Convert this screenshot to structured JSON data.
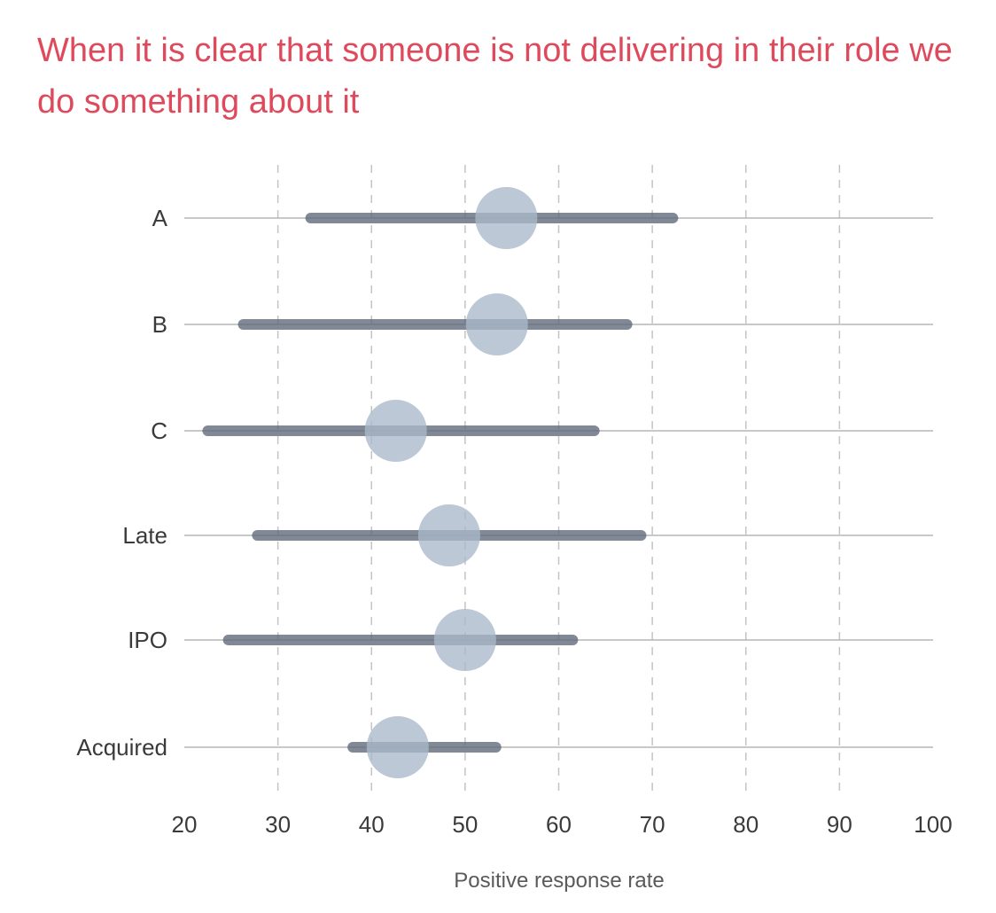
{
  "chart_data": {
    "type": "range-dot",
    "title": "When it is clear that someone is not delivering in their role we do something about it",
    "xlabel": "Positive response rate",
    "ylabel": "",
    "xlim": [
      20,
      100
    ],
    "xticks": [
      20,
      30,
      40,
      50,
      60,
      70,
      80,
      90,
      100
    ],
    "grid": "vertical dashed",
    "categories": [
      "A",
      "B",
      "C",
      "Late",
      "IPO",
      "Acquired"
    ],
    "series": [
      {
        "name": "range_low",
        "values": [
          33.5,
          26.3,
          22.5,
          27.8,
          24.7,
          38.0
        ]
      },
      {
        "name": "range_high",
        "values": [
          72.2,
          67.3,
          63.8,
          68.8,
          61.5,
          53.3
        ]
      },
      {
        "name": "point",
        "values": [
          54.4,
          53.4,
          42.6,
          48.3,
          50.0,
          42.8
        ]
      }
    ],
    "colors": {
      "title": "#de4a5c",
      "range_bar": "#5d6878",
      "point": "#a9b8c9",
      "row_line": "#b5b5b5",
      "grid": "#c4c4c4"
    }
  }
}
